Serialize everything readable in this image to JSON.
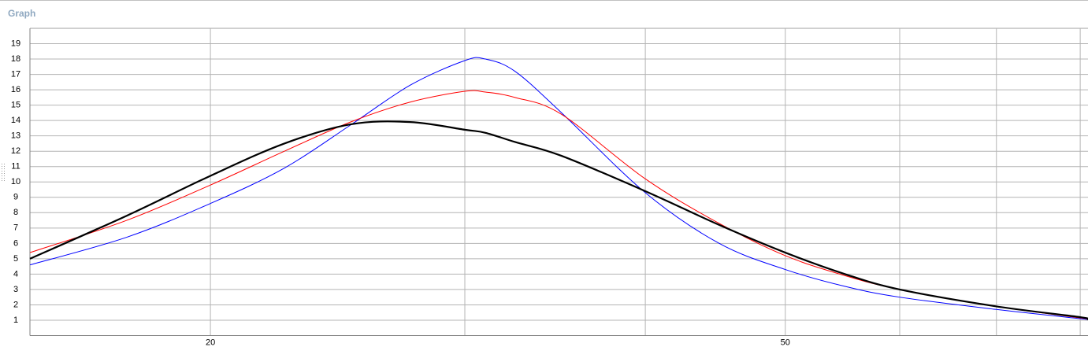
{
  "header": {
    "title": "Graph"
  },
  "chart_data": {
    "type": "line",
    "x": [
      15,
      17.5,
      20,
      22.5,
      25,
      27.5,
      30,
      31,
      32.5,
      35,
      40,
      45,
      50,
      55,
      60,
      70,
      80,
      81
    ],
    "series": [
      {
        "color": "#0000ff",
        "width": 1,
        "values": [
          4.6,
          6.4,
          8.6,
          10.9,
          13.7,
          16.3,
          17.9,
          18.0,
          17.2,
          14.5,
          9.3,
          6.0,
          4.3,
          3.2,
          2.5,
          1.7,
          1.1,
          1.05
        ]
      },
      {
        "color": "#ff0000",
        "width": 1,
        "values": [
          5.4,
          7.5,
          9.8,
          12.0,
          13.9,
          15.2,
          15.9,
          15.85,
          15.5,
          14.4,
          10.2,
          7.3,
          5.2,
          3.9,
          3.0,
          1.9,
          1.15,
          1.08
        ]
      },
      {
        "color": "#000000",
        "width": 2.2,
        "values": [
          5.0,
          7.8,
          10.4,
          12.5,
          13.75,
          13.9,
          13.4,
          13.2,
          12.6,
          11.7,
          9.4,
          7.2,
          5.4,
          4.0,
          3.0,
          1.9,
          1.2,
          1.05
        ]
      }
    ],
    "x_scale": "log",
    "xlim": [
      15,
      81
    ],
    "xticks": [
      20,
      50
    ],
    "x_unlabeled_gridlines": [
      30,
      40,
      60,
      70,
      80
    ],
    "ylim": [
      0,
      20
    ],
    "yticks": [
      1,
      2,
      3,
      4,
      5,
      6,
      7,
      8,
      9,
      10,
      11,
      12,
      13,
      14,
      15,
      16,
      17,
      18,
      19
    ],
    "grid": true
  }
}
